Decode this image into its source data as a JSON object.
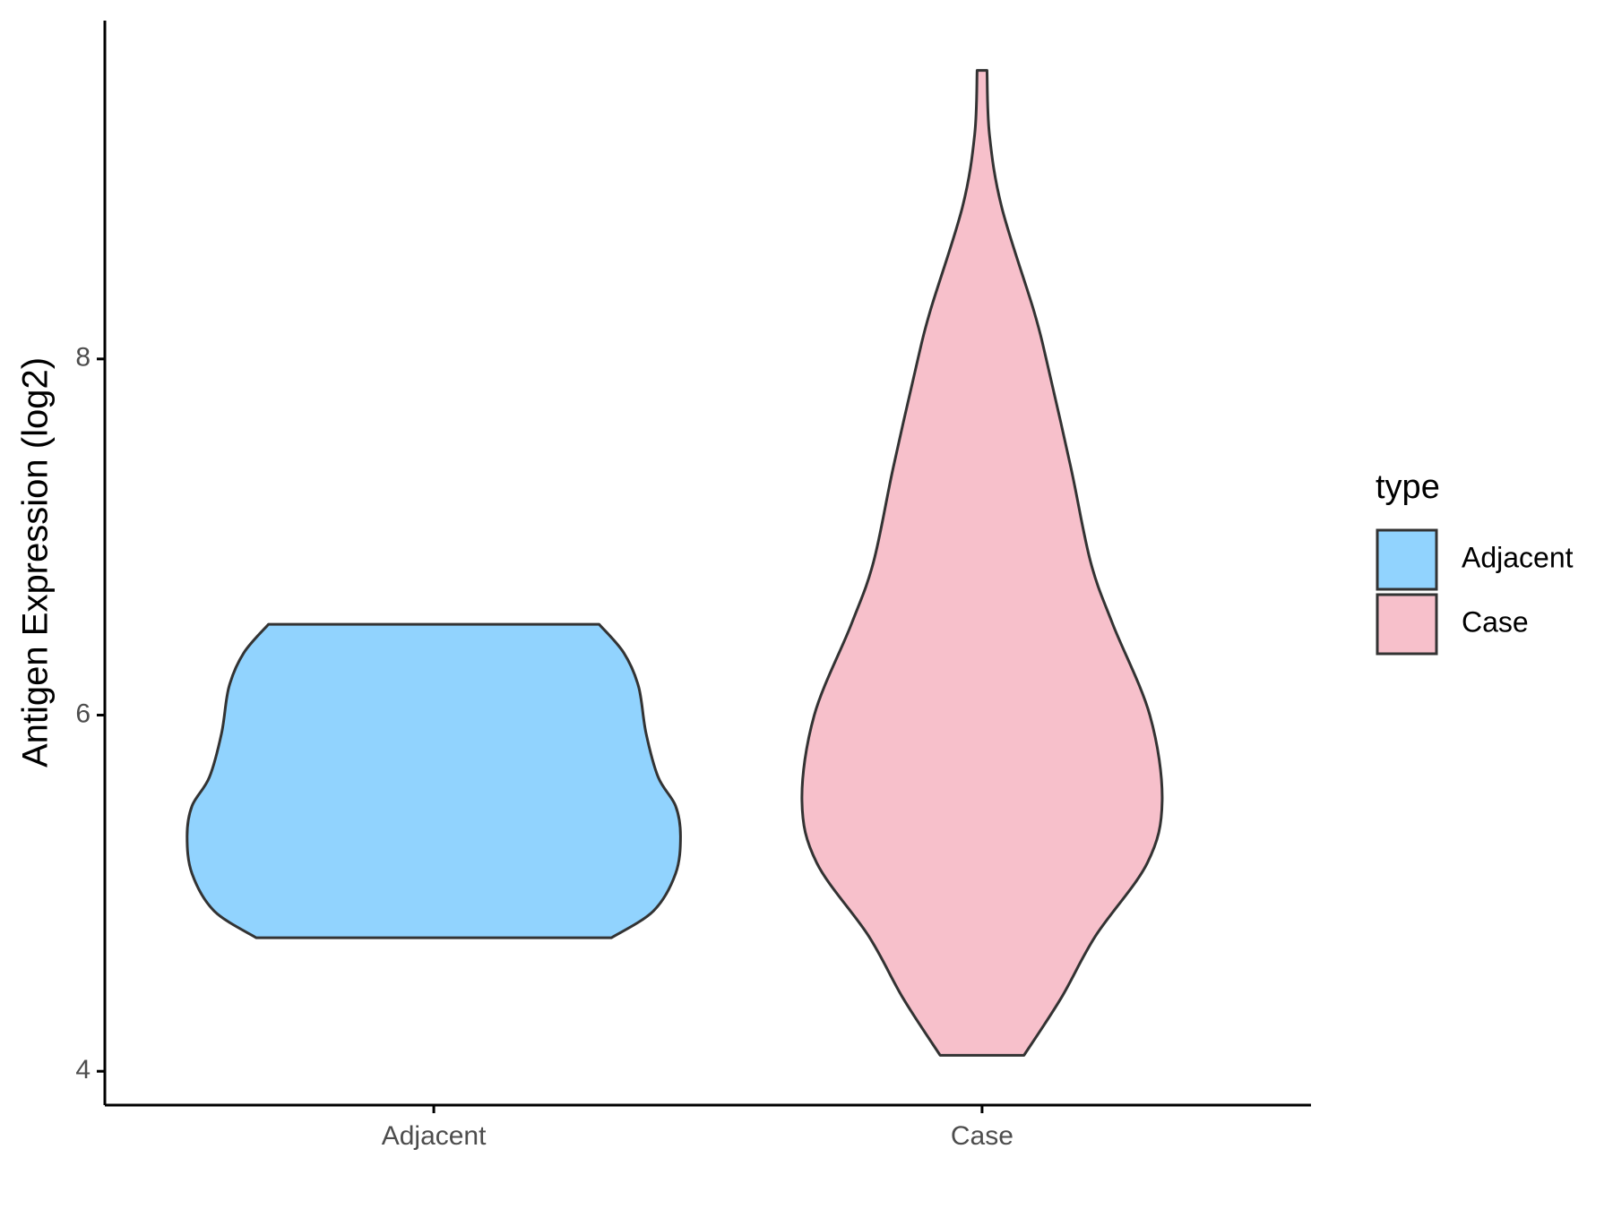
{
  "chart_data": {
    "type": "violin",
    "y_label": "Antigen Expression (log2)",
    "categories": [
      "Adjacent",
      "Case"
    ],
    "legend_title": "type",
    "legend_position": "right",
    "ylim": [
      3.81,
      9.9
    ],
    "yticks": [
      4,
      6,
      8
    ],
    "series": [
      {
        "name": "Adjacent",
        "color": "#91d3fe",
        "y": [
          4.75,
          4.9,
          5.11,
          5.32,
          5.49,
          5.65,
          5.9,
          6.16,
          6.35,
          6.51
        ],
        "density": [
          0.72,
          0.89,
          0.98,
          1.0,
          0.98,
          0.91,
          0.86,
          0.83,
          0.77,
          0.67
        ]
      },
      {
        "name": "Case",
        "color": "#f7c0cb",
        "y": [
          4.09,
          4.41,
          4.76,
          5.17,
          5.52,
          6.0,
          6.51,
          6.86,
          7.39,
          8.0,
          8.27,
          8.85,
          9.26,
          9.62
        ],
        "density": [
          0.17,
          0.32,
          0.46,
          0.67,
          0.73,
          0.68,
          0.53,
          0.44,
          0.36,
          0.26,
          0.21,
          0.08,
          0.03,
          0.02
        ]
      }
    ]
  }
}
